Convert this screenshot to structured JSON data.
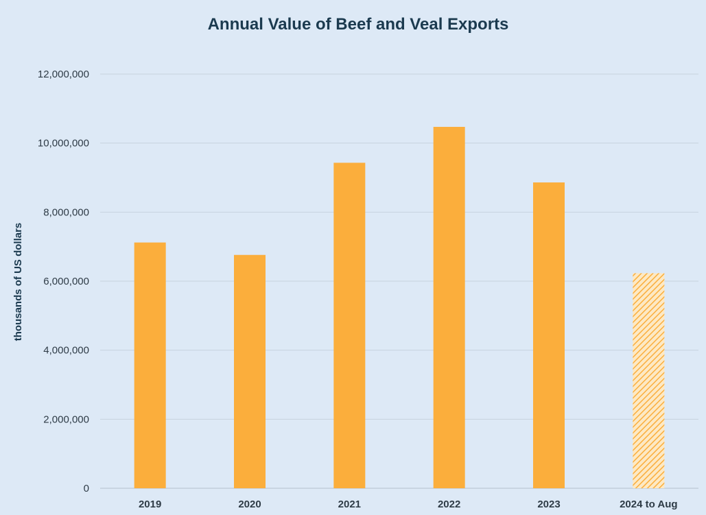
{
  "chart_data": {
    "type": "bar",
    "title": "Annual Value of Beef and Veal Exports",
    "xlabel": "",
    "ylabel": "thousands of US dollars",
    "categories": [
      "2019",
      "2020",
      "2021",
      "2022",
      "2023",
      "2024 to Aug"
    ],
    "values": [
      7120000,
      6760000,
      9430000,
      10470000,
      8860000,
      6230000
    ],
    "partial_period": [
      false,
      false,
      false,
      false,
      false,
      true
    ],
    "ylim": [
      0,
      12000000
    ],
    "yticks": [
      0,
      2000000,
      4000000,
      6000000,
      8000000,
      10000000,
      12000000
    ],
    "ytick_labels": [
      "0",
      "2,000,000",
      "4,000,000",
      "6,000,000",
      "8,000,000",
      "10,000,000",
      "12,000,000"
    ],
    "grid": true,
    "legend": "none",
    "colors": {
      "bar": "#fbae3c",
      "partial_bar_hatch": "#fbae3c",
      "partial_bar_bg": "#fde9c4",
      "background": "#dde9f6",
      "gridline": "#c6d2de",
      "title": "#1b3a4f",
      "axis_text": "#2e3b46"
    }
  }
}
